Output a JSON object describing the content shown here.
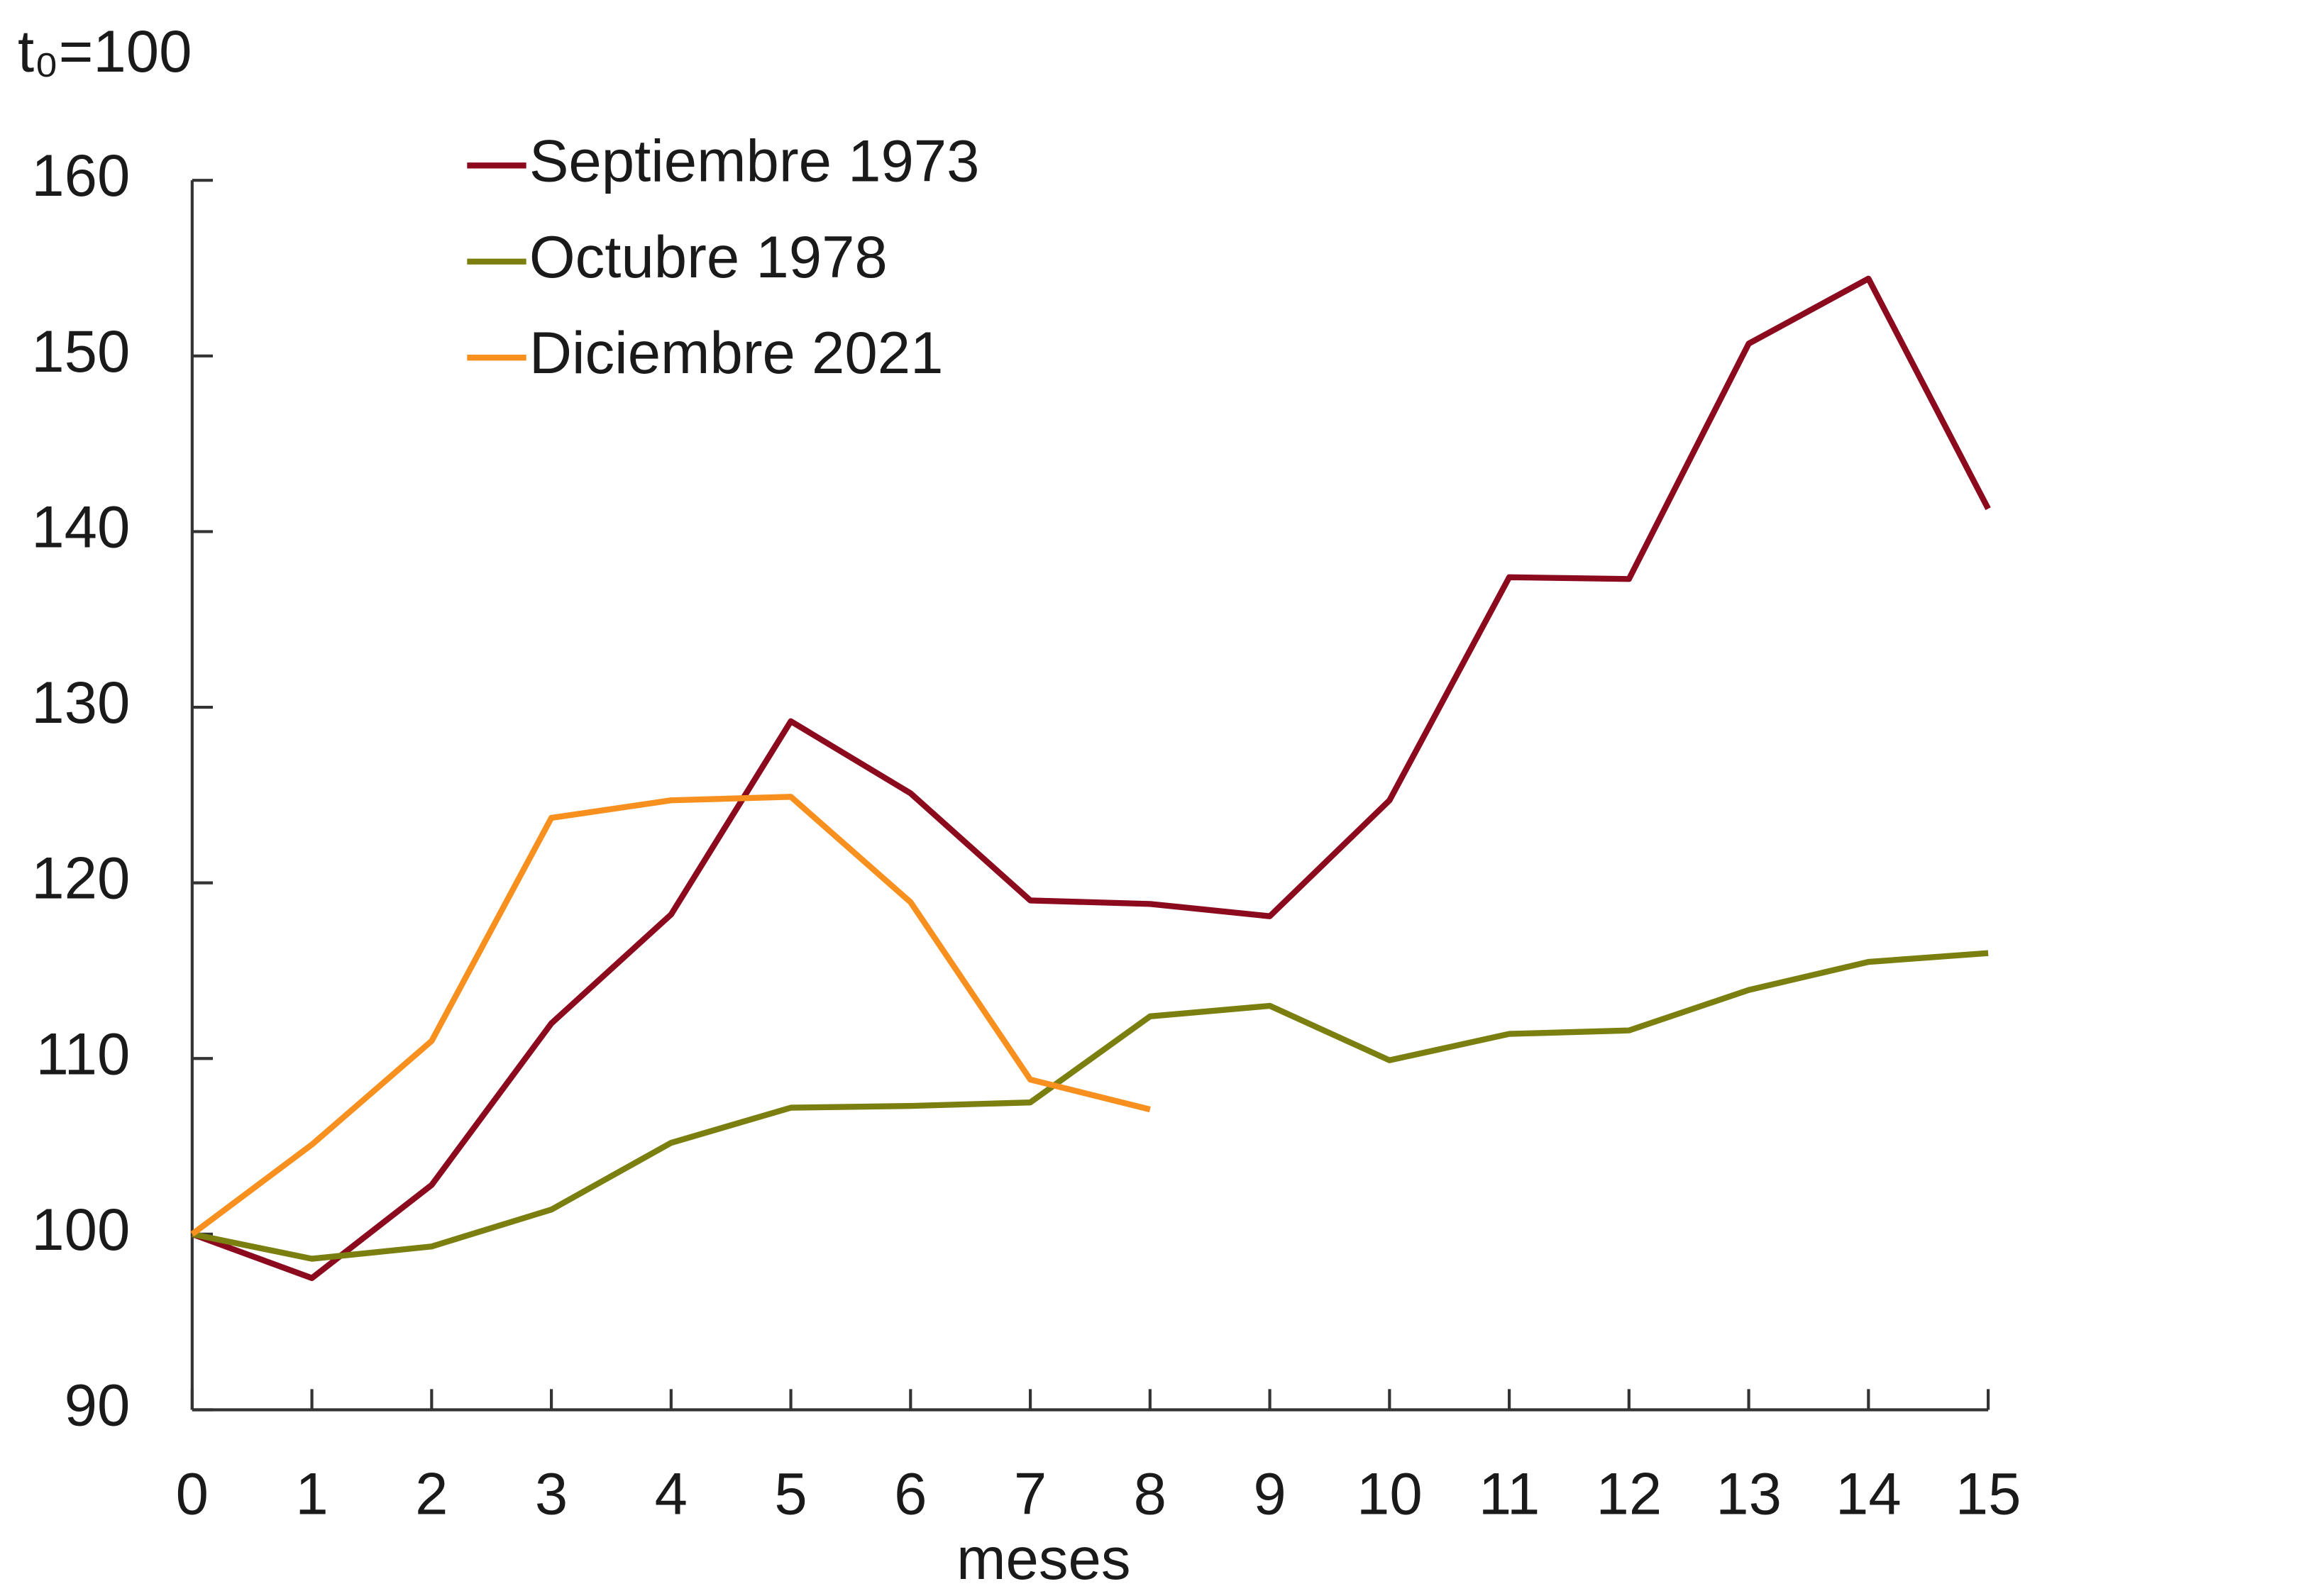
{
  "chart_data": {
    "type": "line",
    "ylabel": "t₀=100",
    "xlabel": "meses",
    "x": [
      0,
      1,
      2,
      3,
      4,
      5,
      6,
      7,
      8,
      9,
      10,
      11,
      12,
      13,
      14,
      15
    ],
    "series": [
      {
        "name": "Septiembre 1973",
        "color": "#8b0a1e",
        "values": [
          100,
          97.5,
          102.8,
          112.0,
          118.2,
          129.2,
          125.1,
          119.0,
          118.8,
          118.1,
          124.7,
          137.4,
          137.3,
          150.7,
          154.4,
          141.3
        ]
      },
      {
        "name": "Octubre 1978",
        "color": "#7a7f0f",
        "values": [
          100,
          98.6,
          99.3,
          101.4,
          105.2,
          107.2,
          107.3,
          107.5,
          112.4,
          113.0,
          109.9,
          111.4,
          111.6,
          113.9,
          115.5,
          116.0
        ]
      },
      {
        "name": "Diciembre 2021",
        "color": "#f7901e",
        "values": [
          100,
          105.1,
          111.0,
          123.7,
          124.7,
          124.9,
          118.9,
          108.8,
          107.1,
          null,
          null,
          null,
          null,
          null,
          null,
          null
        ]
      }
    ],
    "xlim": [
      0,
      15
    ],
    "xticks": [
      0,
      1,
      2,
      3,
      4,
      5,
      6,
      7,
      8,
      9,
      10,
      11,
      12,
      13,
      14,
      15
    ],
    "ylim": [
      90,
      160
    ],
    "yticks": [
      90,
      100,
      110,
      120,
      130,
      140,
      150,
      160
    ],
    "grid": false,
    "legend": "top-left"
  }
}
